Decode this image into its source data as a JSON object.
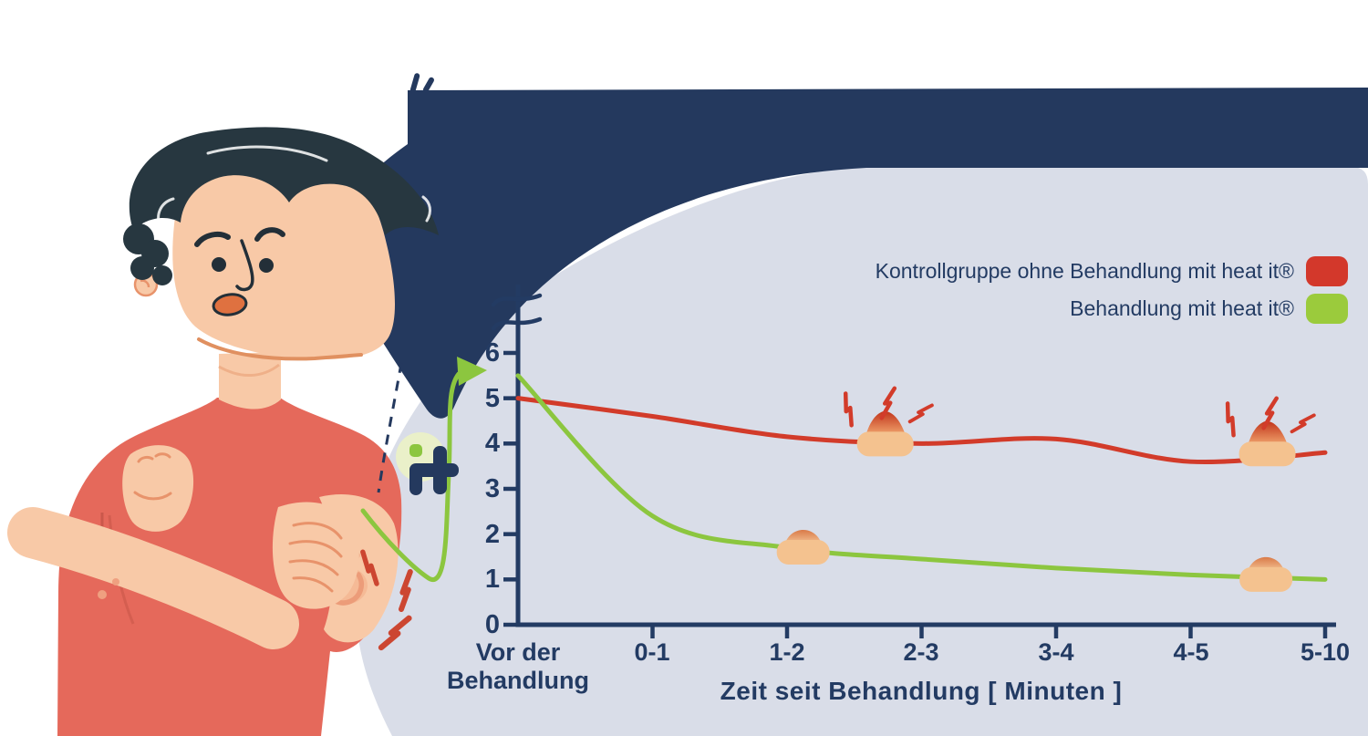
{
  "palette": {
    "header_navy": "#24395e",
    "chart_bg_lavender": "#d9dde8",
    "axis_text_navy": "#233b63",
    "control_red": "#d23b2a",
    "treatment_green": "#8cc63f",
    "skin": "#f8c9a7",
    "shirt_salmon": "#e5695b",
    "hair_dark": "#273740",
    "logo_circle_pale_green": "#eaf0c9"
  },
  "legend": {
    "items": [
      {
        "label": "Kontrollgruppe ohne Behandlung mit heat it®",
        "color": "#d3382b"
      },
      {
        "label": "Behandlung mit heat it®",
        "color": "#9bcb3c"
      }
    ]
  },
  "chart_data": {
    "type": "line",
    "title": "",
    "categories": [
      "Vor der Behandlung",
      "0-1",
      "1-2",
      "2-3",
      "3-4",
      "4-5",
      "5-10"
    ],
    "x_origin": {
      "line1": "Vor der",
      "line2": "Behandlung"
    },
    "series": [
      {
        "name": "Kontrollgruppe ohne Behandlung mit heat it®",
        "color": "#d23b2a",
        "values": [
          5.0,
          4.6,
          4.15,
          4.0,
          4.1,
          3.6,
          3.8
        ]
      },
      {
        "name": "Behandlung mit heat it®",
        "color": "#8cc63f",
        "values": [
          5.5,
          2.4,
          1.7,
          1.45,
          1.25,
          1.1,
          1.0
        ]
      }
    ],
    "xlabel": "Zeit seit Behandlung [ Minuten ]",
    "ylabel": "",
    "ylim": [
      0,
      6
    ],
    "yticks": [
      "0",
      "1",
      "2",
      "3",
      "4",
      "5",
      "6"
    ],
    "axis_break_above": "6",
    "grid": false,
    "legend_position": "top-right",
    "markers": [
      {
        "series": 0,
        "x": 2.73,
        "value": 4.0,
        "inflamed": true
      },
      {
        "series": 0,
        "x": 5.57,
        "value": 3.78,
        "inflamed": true
      },
      {
        "series": 1,
        "x": 2.12,
        "value": 1.61,
        "inflamed": false
      },
      {
        "series": 1,
        "x": 5.56,
        "value": 1.01,
        "inflamed": false
      }
    ]
  }
}
